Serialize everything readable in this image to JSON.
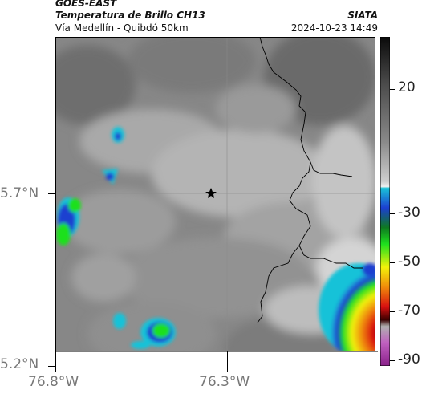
{
  "header": {
    "satellite": "GOES-EAST",
    "product": "Temperatura de Brillo CH13",
    "route": "Vía Medellín - Quibdó 50km",
    "institution": "SIATA",
    "timestamp": "2024-10-23 14:49"
  },
  "axes": {
    "lat_labels": [
      "5.7°N",
      "5.2°N"
    ],
    "lon_labels": [
      "76.8°W",
      "76.3°W"
    ]
  },
  "colorbar": {
    "ticks": [
      "20",
      "-30",
      "-50",
      "-70",
      "-90"
    ],
    "colors": [
      "#0a0a0a",
      "#4a4a4a",
      "#8a8a8a",
      "#cfcfcf",
      "#f2f2f2",
      "#19c2d8",
      "#1c3fd0",
      "#0e7a20",
      "#1ee01e",
      "#f2f20a",
      "#f08c0a",
      "#d81010",
      "#3a0000",
      "#b0b0b0",
      "#c060c0"
    ]
  },
  "map": {
    "marker": "star-marker",
    "marker_color": "#000000",
    "cloud_scale": {
      "warm": "#6e6e6e",
      "mid": "#a0a0a0",
      "cold_edge": "#e8e8e8"
    }
  }
}
